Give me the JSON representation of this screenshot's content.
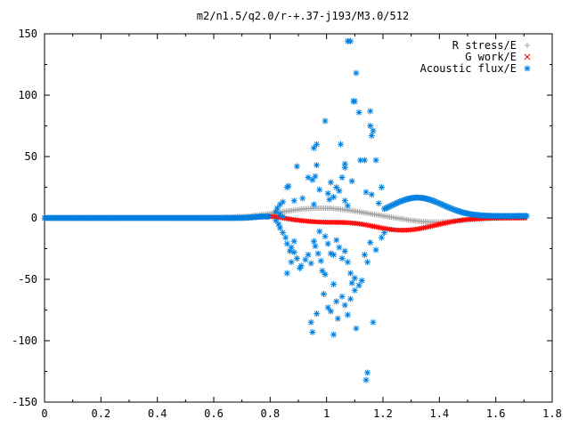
{
  "chart_data": {
    "type": "scatter",
    "title": "m2/n1.5/q2.0/r-+.37-j193/M3.0/512",
    "xlabel": "",
    "ylabel": "",
    "xlim": [
      0,
      1.8
    ],
    "ylim": [
      -150,
      150
    ],
    "x_ticks": [
      "0",
      "0.2",
      "0.4",
      "0.6",
      "0.8",
      "1",
      "1.2",
      "1.4",
      "1.6",
      "1.8"
    ],
    "y_ticks": [
      "150",
      "100",
      "50",
      "0",
      "-50",
      "-100",
      "-150"
    ],
    "grid": false,
    "legend_position": "top-right",
    "series": [
      {
        "name": "R stress/E",
        "marker": "plus",
        "color": "#a0a0a0"
      },
      {
        "name": "G work/E",
        "marker": "cross",
        "color": "#ff0000"
      },
      {
        "name": "Acoustic flux/E",
        "marker": "star",
        "color": "#0080e0"
      }
    ],
    "acoustic_scatter": [
      [
        1.085,
        144
      ],
      [
        1.075,
        144
      ],
      [
        1.105,
        118
      ],
      [
        1.095,
        95
      ],
      [
        1.1,
        95
      ],
      [
        1.115,
        86
      ],
      [
        1.155,
        87
      ],
      [
        1.155,
        75
      ],
      [
        1.165,
        71
      ],
      [
        1.16,
        67
      ],
      [
        0.995,
        79
      ],
      [
        1.135,
        47
      ],
      [
        1.175,
        47
      ],
      [
        1.12,
        47
      ],
      [
        0.965,
        60
      ],
      [
        0.955,
        57
      ],
      [
        1.05,
        60
      ],
      [
        0.895,
        42
      ],
      [
        0.965,
        43
      ],
      [
        1.065,
        44
      ],
      [
        1.065,
        41
      ],
      [
        0.935,
        33
      ],
      [
        0.95,
        31
      ],
      [
        0.96,
        34
      ],
      [
        1.015,
        29
      ],
      [
        1.055,
        33
      ],
      [
        1.09,
        30
      ],
      [
        0.86,
        25
      ],
      [
        0.865,
        26
      ],
      [
        1.035,
        25
      ],
      [
        1.045,
        22
      ],
      [
        1.005,
        20
      ],
      [
        0.975,
        23
      ],
      [
        1.14,
        21
      ],
      [
        1.16,
        19
      ],
      [
        1.195,
        25
      ],
      [
        1.025,
        17
      ],
      [
        1.01,
        15
      ],
      [
        0.885,
        14
      ],
      [
        1.065,
        14
      ],
      [
        0.835,
        11
      ],
      [
        0.845,
        13
      ],
      [
        0.915,
        16
      ],
      [
        0.955,
        11
      ],
      [
        1.075,
        10
      ],
      [
        1.185,
        12
      ],
      [
        0.825,
        8
      ],
      [
        0.82,
        5
      ],
      [
        0.835,
        3
      ],
      [
        0.845,
        1
      ],
      [
        0.82,
        -2
      ],
      [
        0.83,
        -5
      ],
      [
        0.835,
        -8
      ],
      [
        0.845,
        -12
      ],
      [
        0.855,
        -16
      ],
      [
        0.86,
        -21
      ],
      [
        0.87,
        -27
      ],
      [
        0.875,
        -24
      ],
      [
        0.885,
        -19
      ],
      [
        0.885,
        -28
      ],
      [
        0.895,
        -33
      ],
      [
        0.875,
        -36
      ],
      [
        0.86,
        -45
      ],
      [
        0.905,
        -41
      ],
      [
        0.91,
        -39
      ],
      [
        0.925,
        -34
      ],
      [
        0.935,
        -30
      ],
      [
        0.945,
        -37
      ],
      [
        0.955,
        -19
      ],
      [
        0.96,
        -23
      ],
      [
        0.97,
        -29
      ],
      [
        0.98,
        -35
      ],
      [
        0.975,
        -11
      ],
      [
        0.995,
        -15
      ],
      [
        1.005,
        -21
      ],
      [
        1.015,
        -29
      ],
      [
        1.025,
        -30
      ],
      [
        1.035,
        -18
      ],
      [
        1.045,
        -24
      ],
      [
        1.055,
        -33
      ],
      [
        1.065,
        -27
      ],
      [
        1.075,
        -36
      ],
      [
        1.085,
        -45
      ],
      [
        1.09,
        -53
      ],
      [
        1.1,
        -49
      ],
      [
        1.115,
        -55
      ],
      [
        1.125,
        -51
      ],
      [
        1.135,
        -30
      ],
      [
        1.145,
        -36
      ],
      [
        1.155,
        -20
      ],
      [
        1.175,
        -26
      ],
      [
        1.195,
        -16
      ],
      [
        1.205,
        -12
      ],
      [
        0.985,
        -43
      ],
      [
        0.99,
        -62
      ],
      [
        0.995,
        -46
      ],
      [
        1.025,
        -54
      ],
      [
        1.035,
        -68
      ],
      [
        1.055,
        -64
      ],
      [
        1.065,
        -71
      ],
      [
        1.085,
        -66
      ],
      [
        1.1,
        -59
      ],
      [
        0.965,
        -78
      ],
      [
        1.005,
        -73
      ],
      [
        1.04,
        -82
      ],
      [
        1.075,
        -79
      ],
      [
        0.945,
        -85
      ],
      [
        0.95,
        -93
      ],
      [
        1.015,
        -76
      ],
      [
        1.025,
        -95
      ],
      [
        1.105,
        -90
      ],
      [
        1.165,
        -85
      ],
      [
        1.145,
        -126
      ],
      [
        1.14,
        -132
      ]
    ]
  }
}
